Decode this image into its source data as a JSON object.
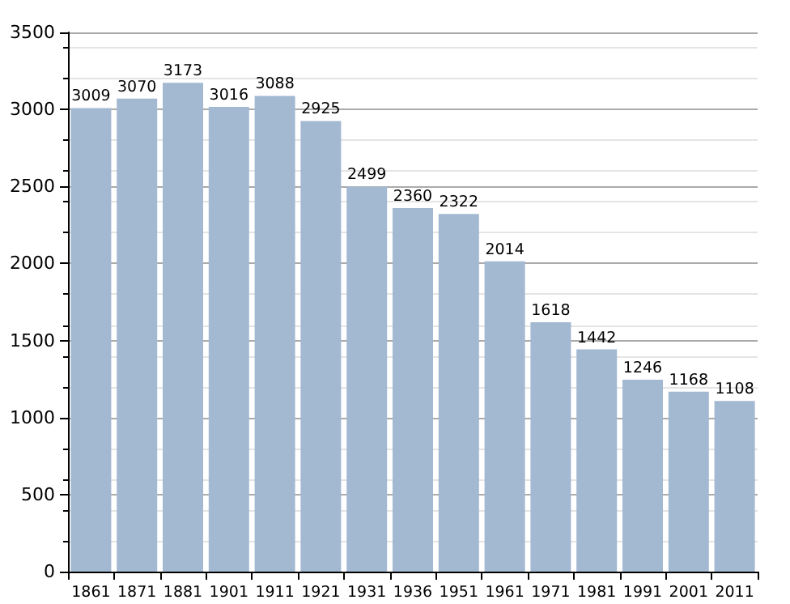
{
  "chart_data": {
    "type": "bar",
    "categories": [
      "1861",
      "1871",
      "1881",
      "1901",
      "1911",
      "1921",
      "1931",
      "1936",
      "1951",
      "1961",
      "1971",
      "1981",
      "1991",
      "2001",
      "2011"
    ],
    "values": [
      3009,
      3070,
      3173,
      3016,
      3088,
      2925,
      2499,
      2360,
      2322,
      2014,
      1618,
      1442,
      1246,
      1168,
      1108
    ],
    "color": "#a3b8d1",
    "ylim": [
      0,
      3500
    ],
    "yticks": [
      0,
      500,
      1000,
      1500,
      2000,
      2500,
      3000,
      3500
    ],
    "grid": "y",
    "data_labels": true
  }
}
